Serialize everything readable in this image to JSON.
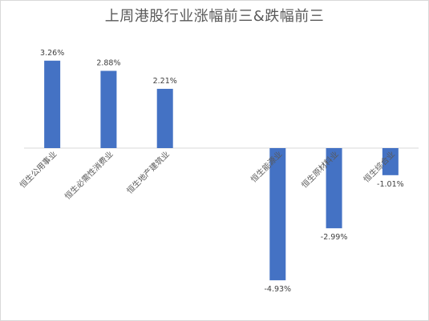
{
  "chart_data": {
    "type": "bar",
    "title": "上周港股行业涨幅前三&跌幅前三",
    "xlabel": "",
    "ylabel": "",
    "categories": [
      "恒生公用事业",
      "恒生必需性消费业",
      "恒生地产建筑业",
      "",
      "恒生能源业",
      "恒生原材料业",
      "恒生综合业"
    ],
    "values": [
      3.26,
      2.88,
      2.21,
      null,
      -4.93,
      -2.99,
      -1.01
    ],
    "data_labels": [
      "3.26%",
      "2.88%",
      "2.21%",
      "",
      "-4.93%",
      "-2.99%",
      "-1.01%"
    ],
    "ylim": [
      -6.5,
      5.0
    ],
    "grid": false,
    "legend": "none",
    "colors": {
      "bar": "#4472c4",
      "axis": "#d9d9d9",
      "text": "#595959"
    }
  }
}
